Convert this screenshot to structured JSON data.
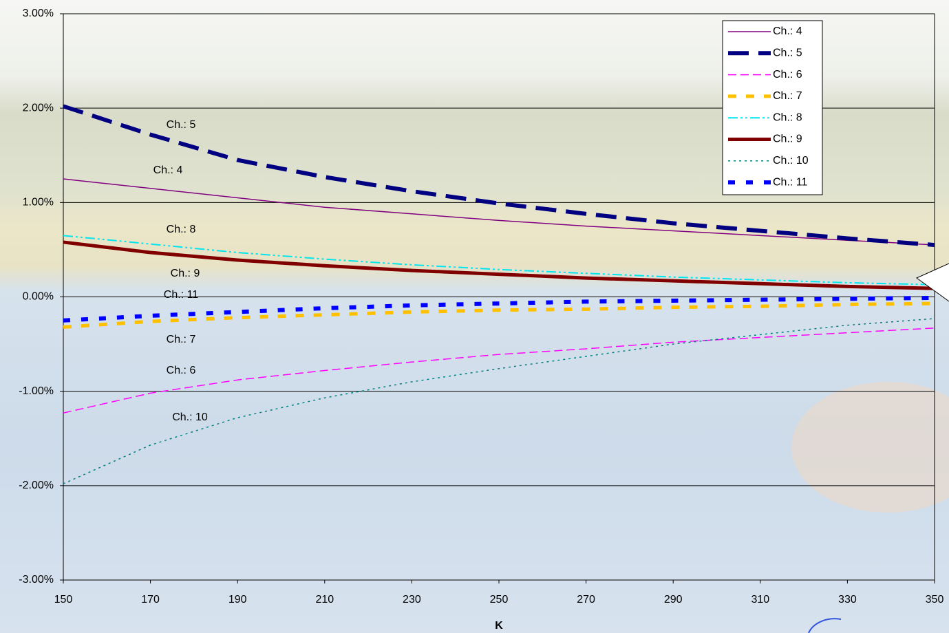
{
  "chart_data": {
    "type": "line",
    "xlabel": "K",
    "x": [
      150,
      170,
      190,
      210,
      230,
      250,
      270,
      290,
      310,
      330,
      350
    ],
    "xlim": [
      150,
      350
    ],
    "xticks": [
      150,
      170,
      190,
      210,
      230,
      250,
      270,
      290,
      310,
      330,
      350
    ],
    "ylim": [
      -3,
      3
    ],
    "yticks": [
      {
        "value": -3,
        "label": "-3.00%"
      },
      {
        "value": -2,
        "label": "-2.00%"
      },
      {
        "value": -1,
        "label": "-1.00%"
      },
      {
        "value": 0,
        "label": "0.00%"
      },
      {
        "value": 1,
        "label": "1.00%"
      },
      {
        "value": 2,
        "label": "2.00%"
      },
      {
        "value": 3,
        "label": "3.00%"
      }
    ],
    "grid": true,
    "legend": "upper right",
    "series": [
      {
        "name": "Ch.: 4",
        "color": "#800080",
        "values": [
          1.25,
          1.15,
          1.05,
          0.95,
          0.88,
          0.81,
          0.75,
          0.7,
          0.65,
          0.6,
          0.55
        ]
      },
      {
        "name": "Ch.: 5",
        "color": "#000080",
        "values": [
          2.02,
          1.72,
          1.45,
          1.27,
          1.12,
          0.99,
          0.88,
          0.78,
          0.7,
          0.62,
          0.55
        ]
      },
      {
        "name": "Ch.: 6",
        "color": "#ff00ff",
        "values": [
          -1.23,
          -1.02,
          -0.88,
          -0.78,
          -0.69,
          -0.61,
          -0.55,
          -0.48,
          -0.43,
          -0.38,
          -0.33
        ]
      },
      {
        "name": "Ch.: 7",
        "color": "#ffc000",
        "values": [
          -0.32,
          -0.26,
          -0.22,
          -0.19,
          -0.16,
          -0.14,
          -0.13,
          -0.11,
          -0.1,
          -0.08,
          -0.07
        ]
      },
      {
        "name": "Ch.: 8",
        "color": "#00e5ee",
        "values": [
          0.65,
          0.56,
          0.47,
          0.4,
          0.34,
          0.29,
          0.25,
          0.21,
          0.18,
          0.15,
          0.13
        ]
      },
      {
        "name": "Ch.: 9",
        "color": "#800000",
        "values": [
          0.58,
          0.47,
          0.39,
          0.33,
          0.28,
          0.24,
          0.2,
          0.17,
          0.14,
          0.11,
          0.09
        ]
      },
      {
        "name": "Ch.: 10",
        "color": "#008080",
        "values": [
          -1.98,
          -1.57,
          -1.28,
          -1.07,
          -0.9,
          -0.76,
          -0.63,
          -0.5,
          -0.4,
          -0.3,
          -0.23
        ]
      },
      {
        "name": "Ch.: 11",
        "color": "#0000ff",
        "values": [
          -0.25,
          -0.2,
          -0.16,
          -0.12,
          -0.09,
          -0.07,
          -0.05,
          -0.04,
          -0.03,
          -0.02,
          -0.01
        ]
      }
    ],
    "annotations": [
      "Ch.: 5",
      "Ch.: 4",
      "Ch.: 8",
      "Ch.: 9",
      "Ch.: 11",
      "Ch.: 7",
      "Ch.: 6",
      "Ch.: 10"
    ]
  }
}
